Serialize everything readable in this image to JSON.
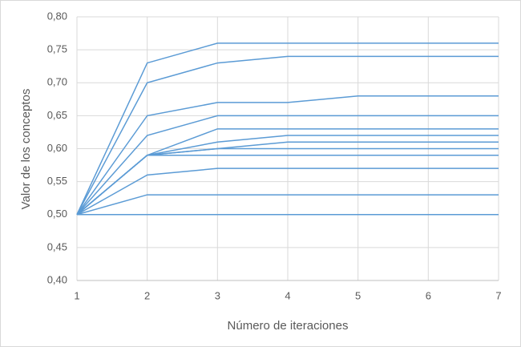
{
  "chart_data": {
    "type": "line",
    "x_label": "Número de iteraciones",
    "y_label": "Valor de los conceptos",
    "x": [
      1,
      2,
      3,
      4,
      5,
      6,
      7
    ],
    "xlim": [
      1,
      7
    ],
    "xticks": [
      1,
      2,
      3,
      4,
      5,
      6,
      7
    ],
    "ylim": [
      0.4,
      0.8
    ],
    "yticks": [
      {
        "value": 0.4,
        "label": "0,40"
      },
      {
        "value": 0.45,
        "label": "0,45"
      },
      {
        "value": 0.5,
        "label": "0,50"
      },
      {
        "value": 0.55,
        "label": "0,55"
      },
      {
        "value": 0.6,
        "label": "0,60"
      },
      {
        "value": 0.65,
        "label": "0,65"
      },
      {
        "value": 0.7,
        "label": "0,70"
      },
      {
        "value": 0.75,
        "label": "0,75"
      },
      {
        "value": 0.8,
        "label": "0,80"
      }
    ],
    "grid": true,
    "series": [
      {
        "color": "#5b9bd5",
        "values": [
          0.5,
          0.73,
          0.76,
          0.76,
          0.76,
          0.76,
          0.76
        ]
      },
      {
        "color": "#5b9bd5",
        "values": [
          0.5,
          0.7,
          0.73,
          0.74,
          0.74,
          0.74,
          0.74
        ]
      },
      {
        "color": "#5b9bd5",
        "values": [
          0.5,
          0.65,
          0.67,
          0.67,
          0.68,
          0.68,
          0.68
        ]
      },
      {
        "color": "#5b9bd5",
        "values": [
          0.5,
          0.62,
          0.65,
          0.65,
          0.65,
          0.65,
          0.65
        ]
      },
      {
        "color": "#5b9bd5",
        "values": [
          0.5,
          0.59,
          0.63,
          0.63,
          0.63,
          0.63,
          0.63
        ]
      },
      {
        "color": "#5b9bd5",
        "values": [
          0.5,
          0.59,
          0.61,
          0.62,
          0.62,
          0.62,
          0.62
        ]
      },
      {
        "color": "#5b9bd5",
        "values": [
          0.5,
          0.59,
          0.6,
          0.61,
          0.61,
          0.61,
          0.61
        ]
      },
      {
        "color": "#5b9bd5",
        "values": [
          0.5,
          0.59,
          0.6,
          0.6,
          0.6,
          0.6,
          0.6
        ]
      },
      {
        "color": "#5b9bd5",
        "values": [
          0.5,
          0.59,
          0.59,
          0.59,
          0.59,
          0.59,
          0.59
        ]
      },
      {
        "color": "#5b9bd5",
        "values": [
          0.5,
          0.56,
          0.57,
          0.57,
          0.57,
          0.57,
          0.57
        ]
      },
      {
        "color": "#5b9bd5",
        "values": [
          0.5,
          0.53,
          0.53,
          0.53,
          0.53,
          0.53,
          0.53
        ]
      },
      {
        "color": "#5b9bd5",
        "values": [
          0.5,
          0.5,
          0.5,
          0.5,
          0.5,
          0.5,
          0.5
        ]
      }
    ]
  }
}
